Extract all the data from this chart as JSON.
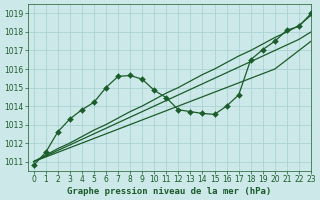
{
  "title": "Graphe pression niveau de la mer (hPa)",
  "bg_color": "#cce8e8",
  "grid_color": "#aad4d4",
  "line_color": "#1a5c2a",
  "marker_color": "#1a5c2a",
  "xlim": [
    -0.5,
    23
  ],
  "ylim": [
    1010.5,
    1019.5
  ],
  "xticks": [
    0,
    1,
    2,
    3,
    4,
    5,
    6,
    7,
    8,
    9,
    10,
    11,
    12,
    13,
    14,
    15,
    16,
    17,
    18,
    19,
    20,
    21,
    22,
    23
  ],
  "yticks": [
    1011,
    1012,
    1013,
    1014,
    1015,
    1016,
    1017,
    1018,
    1019
  ],
  "series_linear1": [
    1011.0,
    1011.35,
    1011.7,
    1012.0,
    1012.35,
    1012.7,
    1013.0,
    1013.35,
    1013.7,
    1014.0,
    1014.35,
    1014.7,
    1015.0,
    1015.35,
    1015.7,
    1016.0,
    1016.35,
    1016.7,
    1017.0,
    1017.35,
    1017.7,
    1018.0,
    1018.35,
    1018.9
  ],
  "series_linear2": [
    1011.0,
    1011.3,
    1011.6,
    1011.9,
    1012.2,
    1012.5,
    1012.8,
    1013.1,
    1013.4,
    1013.7,
    1014.0,
    1014.3,
    1014.6,
    1014.9,
    1015.2,
    1015.5,
    1015.8,
    1016.1,
    1016.4,
    1016.7,
    1017.0,
    1017.3,
    1017.6,
    1018.0
  ],
  "series_linear3": [
    1011.0,
    1011.25,
    1011.5,
    1011.75,
    1012.0,
    1012.25,
    1012.5,
    1012.75,
    1013.0,
    1013.25,
    1013.5,
    1013.75,
    1014.0,
    1014.25,
    1014.5,
    1014.75,
    1015.0,
    1015.25,
    1015.5,
    1015.75,
    1016.0,
    1016.5,
    1017.0,
    1017.5
  ],
  "series_bumpy": [
    1010.8,
    1011.5,
    1012.6,
    1013.3,
    1013.8,
    1014.2,
    1015.0,
    1015.6,
    1015.65,
    1015.45,
    1014.85,
    1014.45,
    1013.8,
    1013.7,
    1013.6,
    1013.55,
    1014.0,
    1014.6,
    1016.5,
    1017.05,
    1017.5,
    1018.1,
    1018.3,
    1019.0
  ],
  "marker_size": 3,
  "linewidth": 0.9,
  "tick_fontsize": 5.5,
  "xlabel_fontsize": 6.5
}
